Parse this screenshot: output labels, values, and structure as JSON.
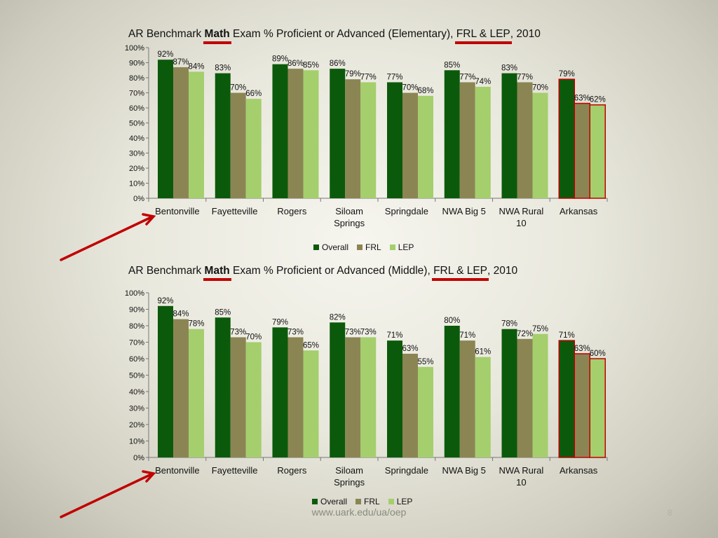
{
  "colors": {
    "overall": "#0b5a0b",
    "frl": "#8b8554",
    "lep": "#a4cf6c",
    "highlight_border": "#c00000",
    "arrow": "#c00000"
  },
  "title_parts": {
    "prefix": "AR Benchmark ",
    "math": "Math",
    "mid": " Exam % Proficient or Advanced (",
    "frl_lep": "FRL & LEP",
    "suffix": ", 2010"
  },
  "footer": {
    "url": "www.uark.edu/ua/oep",
    "page_number": "8"
  },
  "chart_data": [
    {
      "type": "bar",
      "level": "Elementary",
      "title": "AR Benchmark Math Exam % Proficient or Advanced (Elementary), FRL & LEP, 2010",
      "categories": [
        "Bentonville",
        "Fayetteville",
        "Rogers",
        "Siloam Springs",
        "Springdale",
        "NWA Big 5",
        "NWA Rural 10",
        "Arkansas"
      ],
      "category_lines": [
        [
          "Bentonville"
        ],
        [
          "Fayetteville"
        ],
        [
          "Rogers"
        ],
        [
          "Siloam",
          "Springs"
        ],
        [
          "Springdale"
        ],
        [
          "NWA Big 5"
        ],
        [
          "NWA Rural",
          "10"
        ],
        [
          "Arkansas"
        ]
      ],
      "series": [
        {
          "name": "Overall",
          "values": [
            92,
            83,
            89,
            86,
            77,
            85,
            83,
            79
          ],
          "labels": [
            "92%",
            "83%",
            "89%",
            "86%",
            "77%",
            "85%",
            "83%",
            "79%"
          ]
        },
        {
          "name": "FRL",
          "values": [
            87,
            70,
            86,
            79,
            70,
            77,
            77,
            63
          ],
          "labels": [
            "87%",
            "70%",
            "86%",
            "79%",
            "70%",
            "77%",
            "77%",
            "63%"
          ]
        },
        {
          "name": "LEP",
          "values": [
            84,
            66,
            85,
            77,
            68,
            74,
            70,
            62
          ],
          "labels": [
            "84%",
            "66%",
            "85%",
            "77%",
            "68%",
            "74%",
            "70%",
            "62%"
          ]
        }
      ],
      "ylim": [
        0,
        100
      ],
      "yticks": [
        "0%",
        "10%",
        "20%",
        "30%",
        "40%",
        "50%",
        "60%",
        "70%",
        "80%",
        "90%",
        "100%"
      ],
      "highlighted_category": "Arkansas",
      "legend_position": "bottom",
      "grid": false
    },
    {
      "type": "bar",
      "level": "Middle",
      "title": "AR Benchmark Math Exam % Proficient or Advanced (Middle), FRL & LEP, 2010",
      "categories": [
        "Bentonville",
        "Fayetteville",
        "Rogers",
        "Siloam Springs",
        "Springdale",
        "NWA Big 5",
        "NWA Rural 10",
        "Arkansas"
      ],
      "category_lines": [
        [
          "Bentonville"
        ],
        [
          "Fayetteville"
        ],
        [
          "Rogers"
        ],
        [
          "Siloam",
          "Springs"
        ],
        [
          "Springdale"
        ],
        [
          "NWA Big 5"
        ],
        [
          "NWA Rural",
          "10"
        ],
        [
          "Arkansas"
        ]
      ],
      "series": [
        {
          "name": "Overall",
          "values": [
            92,
            85,
            79,
            82,
            71,
            80,
            78,
            71
          ],
          "labels": [
            "92%",
            "85%",
            "79%",
            "82%",
            "71%",
            "80%",
            "78%",
            "71%"
          ]
        },
        {
          "name": "FRL",
          "values": [
            84,
            73,
            73,
            73,
            63,
            71,
            72,
            63
          ],
          "labels": [
            "84%",
            "73%",
            "73%",
            "73%",
            "63%",
            "71%",
            "72%",
            "63%"
          ]
        },
        {
          "name": "LEP",
          "values": [
            78,
            70,
            65,
            73,
            55,
            61,
            75,
            60
          ],
          "labels": [
            "78%",
            "70%",
            "65%",
            "73%",
            "55%",
            "61%",
            "75%",
            "60%"
          ]
        }
      ],
      "ylim": [
        0,
        100
      ],
      "yticks": [
        "0%",
        "10%",
        "20%",
        "30%",
        "40%",
        "50%",
        "60%",
        "70%",
        "80%",
        "90%",
        "100%"
      ],
      "highlighted_category": "Arkansas",
      "legend_position": "bottom",
      "grid": false
    }
  ]
}
